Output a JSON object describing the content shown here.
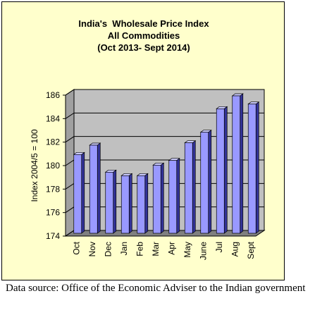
{
  "chart_data": {
    "type": "bar",
    "title_lines": [
      "India's  Wholesale Price Index",
      "All Commodities",
      "(Oct 2013- Sept 2014)"
    ],
    "ylabel": "Index 2004/5 = 100",
    "xlabel": "",
    "categories": [
      "Oct",
      "Nov",
      "Dec",
      "Jan",
      "Feb",
      "Mar",
      "Apr",
      "May",
      "June",
      "Jul",
      "Aug",
      "Sept"
    ],
    "values": [
      180.7,
      181.5,
      179.2,
      178.9,
      178.9,
      179.8,
      180.2,
      181.7,
      182.6,
      184.6,
      185.7,
      185.0
    ],
    "ylim": [
      174,
      186
    ],
    "yticks": [
      174,
      176,
      178,
      180,
      182,
      184,
      186
    ],
    "grid": true,
    "legend": "none",
    "colors": {
      "background": "#FFFFCC",
      "plot_back": "#C0C0C0",
      "plot_floor": "#808080",
      "bar_front": "#9999FF",
      "bar_top": "#CCCCFF",
      "bar_side": "#333399"
    }
  },
  "source_note": "Data source: Office of the Economic Adviser to the Indian government"
}
